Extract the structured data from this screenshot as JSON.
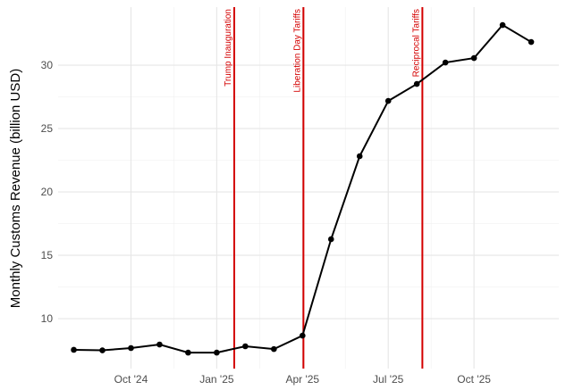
{
  "chart_data": {
    "type": "line",
    "y_label": "Monthly Customs Revenue (billion USD)",
    "x": [
      "2024-08",
      "2024-09",
      "2024-10",
      "2024-11",
      "2024-12",
      "2025-01",
      "2025-02",
      "2025-03",
      "2025-04",
      "2025-05",
      "2025-06",
      "2025-07",
      "2025-08",
      "2025-09",
      "2025-10",
      "2025-11",
      "2025-12"
    ],
    "series": [
      {
        "color": "#000000",
        "values": [
          7.54,
          7.5,
          7.68,
          7.96,
          7.32,
          7.32,
          7.82,
          7.6,
          8.66,
          16.27,
          22.82,
          27.18,
          28.52,
          30.21,
          30.56,
          33.17,
          31.83
        ]
      }
    ],
    "xlim": [
      "2024-07-15",
      "2025-12-31"
    ],
    "xticks": [
      {
        "value": "2024-10",
        "label": "Oct '24"
      },
      {
        "value": "2025-01",
        "label": "Jan '25"
      },
      {
        "value": "2025-04",
        "label": "Apr '25"
      },
      {
        "value": "2025-07",
        "label": "Jul '25"
      },
      {
        "value": "2025-10",
        "label": "Oct '25"
      }
    ],
    "ylim": [
      6.06,
      34.58
    ],
    "yticks": [
      10,
      15,
      20,
      25,
      30
    ],
    "grid": true,
    "annotations": [
      {
        "x": "2025-01-20",
        "text": "Trump Inauguration",
        "color": "#d40000"
      },
      {
        "x": "2025-04-02",
        "text": "Liberation Day Tariffs",
        "color": "#d40000"
      },
      {
        "x": "2025-08-07",
        "text": "Reciprocal Tariffs",
        "color": "#d40000"
      }
    ]
  }
}
